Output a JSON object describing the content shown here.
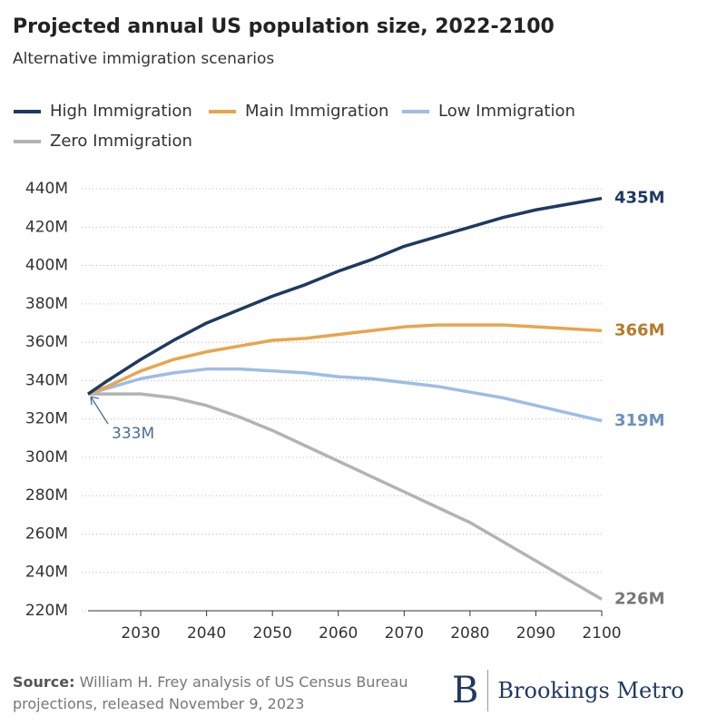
{
  "chart_data": {
    "type": "line",
    "title": "Projected annual US population size, 2022-2100",
    "subtitle": "Alternative immigration scenarios",
    "x": [
      2022,
      2025,
      2030,
      2035,
      2040,
      2045,
      2050,
      2055,
      2060,
      2065,
      2070,
      2075,
      2080,
      2085,
      2090,
      2095,
      2100
    ],
    "series": [
      {
        "name": "High Immigration",
        "color": "#1f3a60",
        "values": [
          333,
          340,
          351,
          361,
          370,
          377,
          384,
          390,
          397,
          403,
          410,
          415,
          420,
          425,
          429,
          432,
          435
        ]
      },
      {
        "name": "Main Immigration",
        "color": "#e8a54b",
        "values": [
          333,
          337,
          345,
          351,
          355,
          358,
          361,
          362,
          364,
          366,
          368,
          369,
          369,
          369,
          368,
          367,
          366
        ]
      },
      {
        "name": "Low Immigration",
        "color": "#9dbde6",
        "values": [
          333,
          336,
          341,
          344,
          346,
          346,
          345,
          344,
          342,
          341,
          339,
          337,
          334,
          331,
          327,
          323,
          319
        ]
      },
      {
        "name": "Zero Immigration",
        "color": "#b3b3b3",
        "values": [
          333,
          333,
          333,
          331,
          327,
          321,
          314,
          306,
          298,
          290,
          282,
          274,
          266,
          256,
          246,
          236,
          226
        ]
      }
    ],
    "xlim": [
      2022,
      2100
    ],
    "xticks": [
      2030,
      2040,
      2050,
      2060,
      2070,
      2080,
      2090,
      2100
    ],
    "ylim": [
      220,
      440
    ],
    "yticks": [
      {
        "value": 220,
        "label": "220M"
      },
      {
        "value": 240,
        "label": "240M"
      },
      {
        "value": 260,
        "label": "260M"
      },
      {
        "value": 280,
        "label": "280M"
      },
      {
        "value": 300,
        "label": "300M"
      },
      {
        "value": 320,
        "label": "320M"
      },
      {
        "value": 340,
        "label": "340M"
      },
      {
        "value": 360,
        "label": "360M"
      },
      {
        "value": 380,
        "label": "380M"
      },
      {
        "value": 400,
        "label": "400M"
      },
      {
        "value": 420,
        "label": "420M"
      },
      {
        "value": 440,
        "label": "440M"
      }
    ],
    "grid": true,
    "annotations": [
      {
        "text": "435M",
        "x": 2100,
        "y": 435,
        "color": "#1f3a60"
      },
      {
        "text": "366M",
        "x": 2100,
        "y": 366,
        "color": "#b8792a"
      },
      {
        "text": "319M",
        "x": 2100,
        "y": 319,
        "color": "#6b8fbe"
      },
      {
        "text": "226M",
        "x": 2100,
        "y": 226,
        "color": "#777777"
      },
      {
        "text": "333M",
        "x": 2022,
        "y": 333,
        "color": "#4a6e99"
      }
    ],
    "source_label": "Source:",
    "source": "William H. Frey analysis of US Census Bureau projections, released November 9, 2023",
    "logo_letter": "B",
    "logo_text": "Brookings Metro"
  }
}
